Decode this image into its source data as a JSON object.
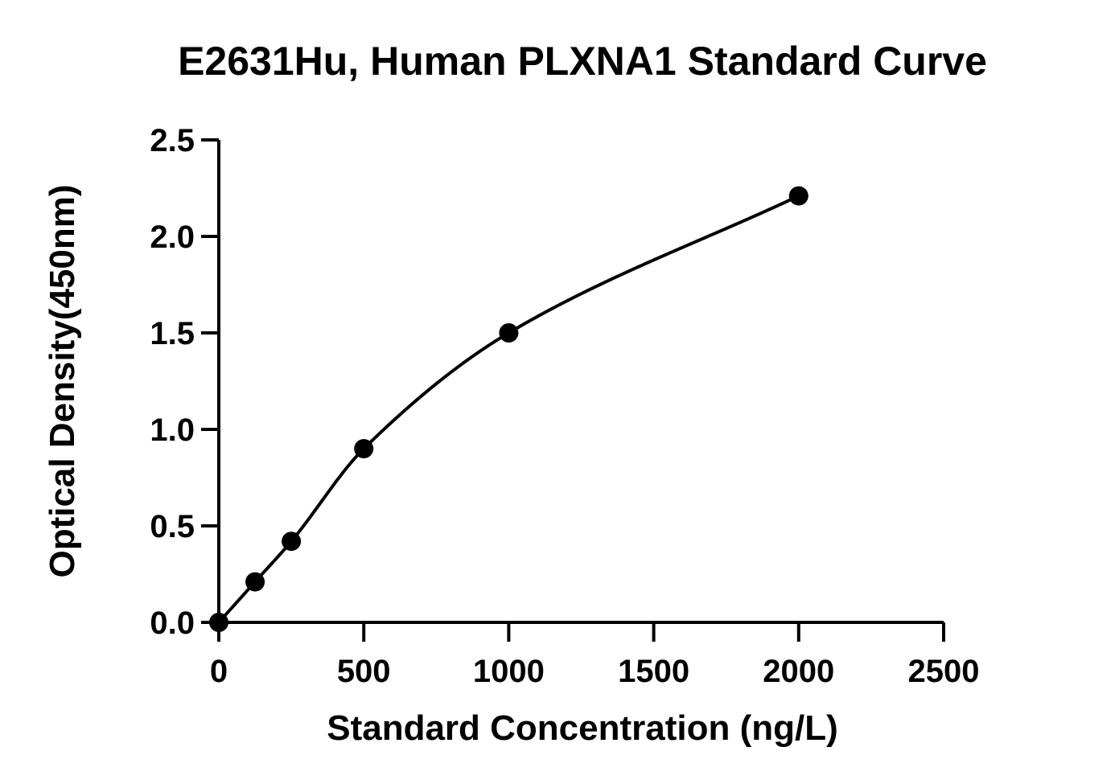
{
  "chart_data": {
    "type": "scatter",
    "title": "E2631Hu, Human PLXNA1 Standard Curve",
    "xlabel": "Standard Concentration (ng/L)",
    "ylabel": "Optical Density(450nm)",
    "xlim": [
      0,
      2500
    ],
    "ylim": [
      0,
      2.5
    ],
    "x_ticks": [
      0,
      500,
      1000,
      1500,
      2000,
      2500
    ],
    "y_ticks": [
      0.0,
      0.5,
      1.0,
      1.5,
      2.0,
      2.5
    ],
    "x_tick_labels": [
      "0",
      "500",
      "1000",
      "1500",
      "2000",
      "2500"
    ],
    "y_tick_labels": [
      "0.0",
      "0.5",
      "1.0",
      "1.5",
      "2.0",
      "2.5"
    ],
    "grid": false,
    "legend": "none",
    "series": [
      {
        "x": [
          0,
          125,
          250,
          500,
          1000,
          2000
        ],
        "y": [
          0.0,
          0.21,
          0.42,
          0.9,
          1.5,
          2.21
        ],
        "fit_curve": "smooth",
        "marker": "filled-circle",
        "color": "#000000"
      }
    ]
  }
}
